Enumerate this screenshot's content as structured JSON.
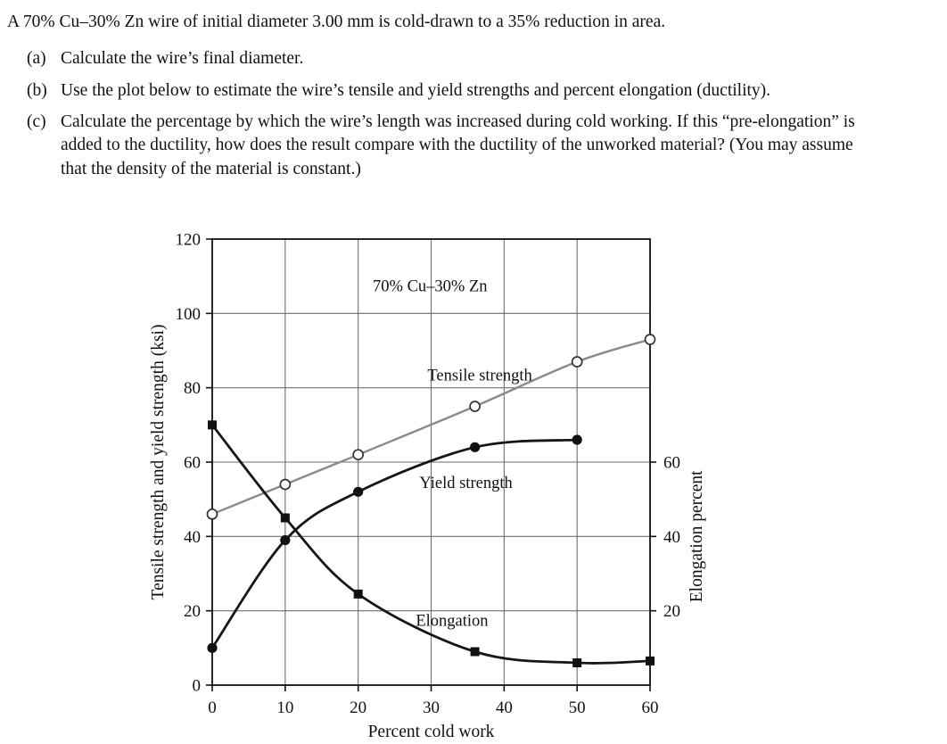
{
  "problem": {
    "intro": "A 70% Cu–30% Zn wire of initial diameter 3.00 mm is cold-drawn to a 35% reduction in area.",
    "parts": [
      {
        "label": "(a)",
        "text": "Calculate the wire’s final diameter."
      },
      {
        "label": "(b)",
        "text": "Use the plot below to estimate the wire’s tensile and yield strengths and percent elongation (ductility)."
      },
      {
        "label": "(c)",
        "text": "Calculate the percentage by which the wire’s length was increased during cold working. If this “pre-elongation” is added to the ductility, how does the result compare with the ductility of the unworked material? (You may assume that the density of the material is constant.)"
      }
    ]
  },
  "chart_data": {
    "type": "line",
    "title": "70% Cu–30% Zn",
    "xlabel": "Percent cold work",
    "ylabel_left": "Tensile strength and yield strength (ksi)",
    "ylabel_right": "Elongation percent",
    "xlim": [
      0,
      60
    ],
    "ylim_left": [
      0,
      120
    ],
    "x_ticks": [
      0,
      10,
      20,
      30,
      40,
      50,
      60
    ],
    "y_ticks_left": [
      0,
      20,
      40,
      60,
      80,
      100,
      120
    ],
    "y_ticks_right": [
      20,
      40,
      60
    ],
    "grid": true,
    "right_axis_shares_left_scale": true,
    "colors": {
      "tensile_line": "#8a8a8a",
      "curve_line": "#161616",
      "grid": "#6e6e6e"
    },
    "series": [
      {
        "name": "Tensile strength",
        "marker": "open-circle",
        "color": "#8a8a8a",
        "x": [
          0,
          10,
          20,
          36,
          50,
          60
        ],
        "y": [
          46,
          54,
          62,
          75,
          87,
          93
        ]
      },
      {
        "name": "Yield strength",
        "marker": "filled-circle",
        "color": "#161616",
        "x": [
          0,
          10,
          20,
          36,
          50
        ],
        "y": [
          10,
          39,
          52,
          64,
          66
        ]
      },
      {
        "name": "Elongation",
        "marker": "filled-square",
        "color": "#161616",
        "axis": "right",
        "x": [
          0,
          10,
          20,
          36,
          50,
          60
        ],
        "y": [
          70,
          45,
          24.5,
          9,
          6,
          6.5
        ]
      }
    ],
    "annotations": [
      {
        "text": "70% Cu–30% Zn",
        "x": 22,
        "y": 106
      },
      {
        "text": "Tensile strength",
        "x": 29.5,
        "y": 82
      },
      {
        "text": "Yield strength",
        "x": 28.4,
        "y": 53
      },
      {
        "text": "Elongation",
        "x": 27.9,
        "y": 16
      }
    ]
  }
}
